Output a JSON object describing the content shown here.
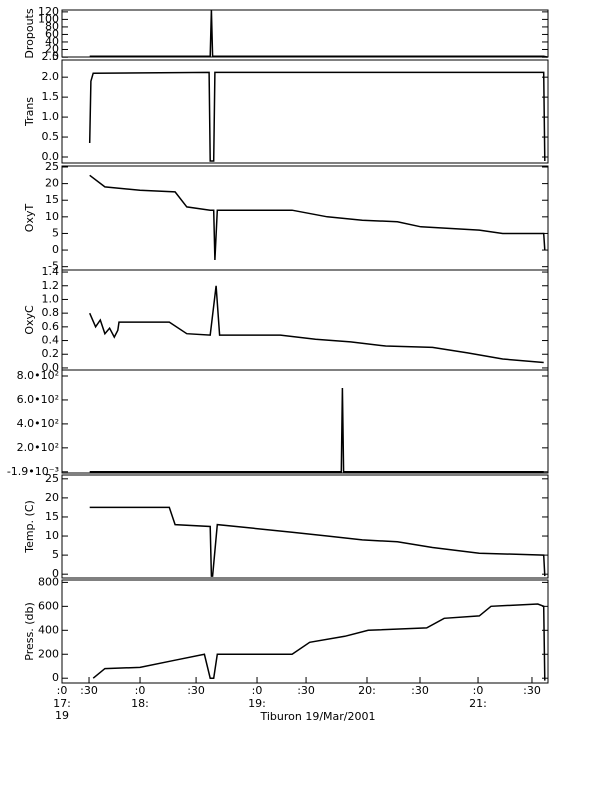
{
  "x_axis": {
    "label": "Tiburon 19/Mar/2001",
    "xlim": [
      17.333,
      21.487
    ],
    "xticks": [
      {
        "value": 17.333,
        "label": ":0"
      },
      {
        "value": 17.564,
        "label": ":30"
      },
      {
        "value": 18.0,
        "label": ":0"
      },
      {
        "value": 18.479,
        "label": ":30"
      },
      {
        "value": 19.0,
        "label": ":0"
      },
      {
        "value": 19.419,
        "label": ":30"
      },
      {
        "value": 19.94,
        "label": "20:"
      },
      {
        "value": 20.393,
        "label": ":30"
      },
      {
        "value": 20.889,
        "label": ":0"
      },
      {
        "value": 21.35,
        "label": ":30"
      }
    ],
    "xticks_hour": [
      {
        "value": 17.333,
        "label": "17:"
      },
      {
        "value": 18.0,
        "label": "18:"
      },
      {
        "value": 19.0,
        "label": "19:"
      },
      {
        "value": 20.889,
        "label": "21:"
      }
    ],
    "date_label": "19"
  },
  "chart_data": [
    {
      "type": "line",
      "ylabel": "Dropouts",
      "color": "#000000",
      "ylim": [
        0,
        125
      ],
      "yticks": [
        0,
        20,
        40,
        60,
        80,
        100,
        120
      ],
      "x": [
        17.57,
        18.6,
        18.61,
        18.62,
        21.45,
        21.48
      ],
      "values": [
        2,
        2,
        125,
        2,
        2,
        0
      ]
    },
    {
      "type": "line",
      "ylabel": "Trans",
      "color": "#000000",
      "ylim": [
        -0.15,
        2.43
      ],
      "yticks": [
        {
          "value": 0,
          "label": "0.0"
        },
        {
          "value": 0.5,
          "label": "0.5"
        },
        {
          "value": 1,
          "label": "1.0"
        },
        {
          "value": 1.5,
          "label": "1.5"
        },
        {
          "value": 2,
          "label": "2.0"
        },
        {
          "value": 2.5,
          "label": "2.5"
        }
      ],
      "x": [
        17.57,
        17.58,
        17.6,
        18.59,
        18.6,
        18.63,
        18.64,
        21.45,
        21.46
      ],
      "values": [
        0.35,
        1.9,
        2.1,
        2.12,
        -0.1,
        -0.1,
        2.12,
        2.12,
        -0.1
      ]
    },
    {
      "type": "line",
      "ylabel": "OxyT",
      "color": "#000000",
      "ylim": [
        -6,
        25.3
      ],
      "yticks": [
        -5,
        0,
        5,
        10,
        15,
        20,
        25
      ],
      "x": [
        17.57,
        17.7,
        18.0,
        18.3,
        18.4,
        18.6,
        18.63,
        18.64,
        18.66,
        19.3,
        19.6,
        19.9,
        20.2,
        20.4,
        20.9,
        21.1,
        21.45,
        21.46
      ],
      "values": [
        22.5,
        19,
        18,
        17.5,
        13,
        12,
        12,
        -3,
        12,
        12,
        10,
        9,
        8.5,
        7,
        6,
        5,
        5,
        0
      ]
    },
    {
      "type": "line",
      "ylabel": "OxyC",
      "color": "#000000",
      "ylim": [
        -0.03,
        1.43
      ],
      "yticks": [
        {
          "value": 0,
          "label": "0.0"
        },
        {
          "value": 0.2,
          "label": "0.2"
        },
        {
          "value": 0.4,
          "label": "0.4"
        },
        {
          "value": 0.6,
          "label": "0.6"
        },
        {
          "value": 0.8,
          "label": "0.8"
        },
        {
          "value": 1,
          "label": "1.0"
        },
        {
          "value": 1.2,
          "label": "1.2"
        },
        {
          "value": 1.4,
          "label": "1.4"
        }
      ],
      "x": [
        17.57,
        17.62,
        17.66,
        17.7,
        17.74,
        17.78,
        17.81,
        17.82,
        18.25,
        18.4,
        18.6,
        18.65,
        18.68,
        19.2,
        19.5,
        19.8,
        20.1,
        20.5,
        20.8,
        21.1,
        21.45
      ],
      "values": [
        0.8,
        0.6,
        0.7,
        0.5,
        0.58,
        0.45,
        0.55,
        0.67,
        0.67,
        0.5,
        0.48,
        1.2,
        0.48,
        0.48,
        0.42,
        0.38,
        0.32,
        0.3,
        0.22,
        0.13,
        0.08
      ]
    },
    {
      "type": "line",
      "color": "#000000",
      "ylim": [
        -10,
        850
      ],
      "yticks": [
        {
          "value": -0.0019,
          "label": "-1.9•10⁻³"
        },
        {
          "value": 200,
          "label": "2.0•10²"
        },
        {
          "value": 400,
          "label": "4.0•10²"
        },
        {
          "value": 600,
          "label": "6.0•10²"
        },
        {
          "value": 800,
          "label": "8.0•10²"
        }
      ],
      "x": [
        17.57,
        19.72,
        19.73,
        19.74,
        21.45
      ],
      "values": [
        0,
        0,
        700,
        0,
        0
      ]
    },
    {
      "type": "line",
      "ylabel": "Temp. (C)",
      "color": "#000000",
      "ylim": [
        -1,
        26
      ],
      "yticks": [
        0,
        5,
        10,
        15,
        20,
        25
      ],
      "x": [
        17.57,
        18.25,
        18.3,
        18.6,
        18.61,
        18.62,
        18.66,
        19.3,
        19.6,
        19.9,
        20.2,
        20.5,
        20.9,
        21.45,
        21.46
      ],
      "values": [
        17.5,
        17.5,
        13,
        12.5,
        -0.5,
        -0.5,
        13,
        11,
        10,
        9,
        8.5,
        7,
        5.5,
        5,
        -0.5
      ]
    },
    {
      "type": "line",
      "ylabel": "Press. (db)",
      "color": "#000000",
      "ylim": [
        -40,
        820
      ],
      "yticks": [
        0,
        200,
        400,
        600,
        800
      ],
      "x": [
        17.6,
        17.7,
        18.0,
        18.3,
        18.55,
        18.6,
        18.63,
        18.66,
        19.3,
        19.45,
        19.75,
        19.95,
        20.45,
        20.6,
        20.9,
        21.0,
        21.4,
        21.45,
        21.46
      ],
      "values": [
        0,
        80,
        90,
        150,
        200,
        0,
        0,
        200,
        200,
        300,
        350,
        400,
        420,
        500,
        520,
        600,
        620,
        600,
        -20
      ]
    }
  ]
}
